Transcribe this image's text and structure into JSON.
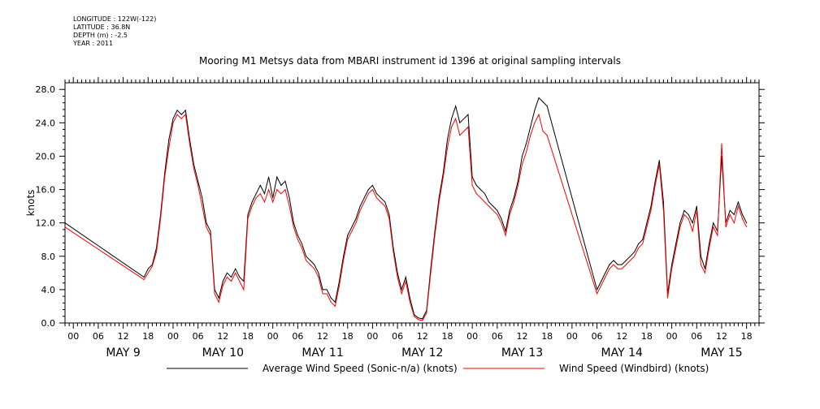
{
  "header": {
    "longitude": "LONGITUDE : 122W(-122)",
    "latitude": "LATITUDE : 36.8N",
    "depth": "DEPTH (m) : -2.5",
    "year": "YEAR : 2011",
    "title": "Mooring M1 Metsys data from MBARI instrument id 1396 at original sampling intervals"
  },
  "chart_data": {
    "type": "line",
    "title": "Mooring M1 Metsys data from MBARI instrument id 1396 at original sampling intervals",
    "xlabel": "",
    "ylabel": "knots",
    "ylim": [
      0,
      28.8
    ],
    "xlim_hours": [
      -2,
      165
    ],
    "x_unit": "hours since May 9 00:00, 2011",
    "y_ticks": [
      "0.0",
      "4.0",
      "8.0",
      "12.0",
      "16.0",
      "20.0",
      "24.0",
      "28.0"
    ],
    "y_tick_values": [
      0,
      4,
      8,
      12,
      16,
      20,
      24,
      28
    ],
    "x_hour_ticks": [
      0,
      6,
      12,
      18,
      24,
      30,
      36,
      42,
      48,
      54,
      60,
      66,
      72,
      78,
      84,
      90,
      96,
      102,
      108,
      114,
      120,
      126,
      132,
      138,
      144,
      150,
      156,
      162
    ],
    "x_hour_labels": [
      "00",
      "06",
      "12",
      "18",
      "00",
      "06",
      "12",
      "18",
      "00",
      "06",
      "12",
      "18",
      "00",
      "06",
      "12",
      "18",
      "00",
      "06",
      "12",
      "18",
      "00",
      "06",
      "12",
      "18",
      "00",
      "06",
      "12",
      "18"
    ],
    "day_labels": [
      {
        "label": "MAY  9",
        "hour": 12
      },
      {
        "label": "MAY 10",
        "hour": 36
      },
      {
        "label": "MAY 11",
        "hour": 60
      },
      {
        "label": "MAY 12",
        "hour": 84
      },
      {
        "label": "MAY 13",
        "hour": 108
      },
      {
        "label": "MAY 14",
        "hour": 132
      },
      {
        "label": "MAY 15",
        "hour": 156
      }
    ],
    "grid": false,
    "legend_position": "bottom",
    "series": [
      {
        "name": "Average Wind Speed (Sonic-n/a) (knots)",
        "color": "#000000",
        "points": [
          [
            -2,
            12.0
          ],
          [
            17,
            5.5
          ],
          [
            18,
            6.5
          ],
          [
            19,
            7.0
          ],
          [
            20,
            9.0
          ],
          [
            21,
            13.0
          ],
          [
            22,
            18.0
          ],
          [
            23,
            22.0
          ],
          [
            24,
            24.5
          ],
          [
            25,
            25.5
          ],
          [
            26,
            25.0
          ],
          [
            27,
            25.5
          ],
          [
            28,
            22.0
          ],
          [
            29,
            19.0
          ],
          [
            30,
            17.0
          ],
          [
            31,
            15.0
          ],
          [
            32,
            12.0
          ],
          [
            33,
            11.0
          ],
          [
            34,
            4.0
          ],
          [
            35,
            3.0
          ],
          [
            36,
            5.0
          ],
          [
            37,
            6.0
          ],
          [
            38,
            5.5
          ],
          [
            39,
            6.5
          ],
          [
            40,
            5.5
          ],
          [
            41,
            5.0
          ],
          [
            42,
            13.0
          ],
          [
            43,
            14.5
          ],
          [
            44,
            15.5
          ],
          [
            45,
            16.5
          ],
          [
            46,
            15.5
          ],
          [
            47,
            17.5
          ],
          [
            48,
            15.0
          ],
          [
            49,
            17.5
          ],
          [
            50,
            16.5
          ],
          [
            51,
            17.0
          ],
          [
            52,
            15.0
          ],
          [
            53,
            12.0
          ],
          [
            54,
            10.5
          ],
          [
            55,
            9.5
          ],
          [
            56,
            8.0
          ],
          [
            57,
            7.5
          ],
          [
            58,
            7.0
          ],
          [
            59,
            6.0
          ],
          [
            60,
            4.0
          ],
          [
            61,
            4.0
          ],
          [
            62,
            3.0
          ],
          [
            63,
            2.5
          ],
          [
            64,
            5.0
          ],
          [
            65,
            8.0
          ],
          [
            66,
            10.5
          ],
          [
            67,
            11.5
          ],
          [
            68,
            12.5
          ],
          [
            69,
            14.0
          ],
          [
            70,
            15.0
          ],
          [
            71,
            16.0
          ],
          [
            72,
            16.5
          ],
          [
            73,
            15.5
          ],
          [
            74,
            15.0
          ],
          [
            75,
            14.5
          ],
          [
            76,
            13.0
          ],
          [
            77,
            9.0
          ],
          [
            78,
            6.0
          ],
          [
            79,
            4.0
          ],
          [
            80,
            5.5
          ],
          [
            81,
            3.0
          ],
          [
            82,
            1.0
          ],
          [
            83,
            0.6
          ],
          [
            84,
            0.5
          ],
          [
            85,
            1.5
          ],
          [
            86,
            6.5
          ],
          [
            87,
            11.0
          ],
          [
            88,
            15.0
          ],
          [
            89,
            18.0
          ],
          [
            90,
            22.0
          ],
          [
            91,
            24.5
          ],
          [
            92,
            26.0
          ],
          [
            93,
            24.0
          ],
          [
            94,
            24.5
          ],
          [
            95,
            25.0
          ],
          [
            96,
            17.5
          ],
          [
            97,
            16.5
          ],
          [
            98,
            16.0
          ],
          [
            99,
            15.5
          ],
          [
            100,
            14.5
          ],
          [
            101,
            14.0
          ],
          [
            102,
            13.5
          ],
          [
            103,
            12.5
          ],
          [
            104,
            11.0
          ],
          [
            105,
            13.5
          ],
          [
            106,
            15.0
          ],
          [
            107,
            17.0
          ],
          [
            108,
            20.0
          ],
          [
            109,
            21.5
          ],
          [
            110,
            23.5
          ],
          [
            111,
            25.5
          ],
          [
            112,
            27.0
          ],
          [
            113,
            26.5
          ],
          [
            114,
            26.0
          ],
          [
            126,
            4.0
          ],
          [
            127,
            5.0
          ],
          [
            128,
            6.0
          ],
          [
            129,
            7.0
          ],
          [
            130,
            7.5
          ],
          [
            131,
            7.0
          ],
          [
            132,
            7.0
          ],
          [
            133,
            7.5
          ],
          [
            134,
            8.0
          ],
          [
            135,
            8.5
          ],
          [
            136,
            9.5
          ],
          [
            137,
            10.0
          ],
          [
            138,
            12.0
          ],
          [
            139,
            14.0
          ],
          [
            140,
            17.0
          ],
          [
            141,
            19.5
          ],
          [
            142,
            14.5
          ],
          [
            143,
            3.5
          ],
          [
            144,
            7.0
          ],
          [
            145,
            9.5
          ],
          [
            146,
            12.0
          ],
          [
            147,
            13.5
          ],
          [
            148,
            13.0
          ],
          [
            149,
            12.0
          ],
          [
            150,
            14.0
          ],
          [
            151,
            8.0
          ],
          [
            152,
            6.5
          ],
          [
            153,
            9.5
          ],
          [
            154,
            12.0
          ],
          [
            155,
            11.0
          ],
          [
            156,
            20.0
          ],
          [
            157,
            12.0
          ],
          [
            158,
            13.5
          ],
          [
            159,
            13.0
          ],
          [
            160,
            14.5
          ],
          [
            161,
            13.0
          ],
          [
            162,
            12.0
          ]
        ]
      },
      {
        "name": "Wind Speed (Windbird) (knots)",
        "color": "#ff0000",
        "points": [
          [
            -2,
            11.5
          ],
          [
            17,
            5.2
          ],
          [
            18,
            6.0
          ],
          [
            19,
            6.8
          ],
          [
            20,
            8.5
          ],
          [
            21,
            12.5
          ],
          [
            22,
            17.5
          ],
          [
            23,
            21.0
          ],
          [
            24,
            24.0
          ],
          [
            25,
            25.0
          ],
          [
            26,
            24.5
          ],
          [
            27,
            25.0
          ],
          [
            28,
            21.5
          ],
          [
            29,
            18.5
          ],
          [
            30,
            16.5
          ],
          [
            31,
            14.0
          ],
          [
            32,
            11.5
          ],
          [
            33,
            10.5
          ],
          [
            34,
            3.5
          ],
          [
            35,
            2.5
          ],
          [
            36,
            4.5
          ],
          [
            37,
            5.5
          ],
          [
            38,
            5.0
          ],
          [
            39,
            6.0
          ],
          [
            40,
            5.0
          ],
          [
            41,
            4.0
          ],
          [
            42,
            12.5
          ],
          [
            43,
            14.0
          ],
          [
            44,
            15.0
          ],
          [
            45,
            15.5
          ],
          [
            46,
            14.5
          ],
          [
            47,
            16.0
          ],
          [
            48,
            14.5
          ],
          [
            49,
            16.0
          ],
          [
            50,
            15.5
          ],
          [
            51,
            16.0
          ],
          [
            52,
            14.0
          ],
          [
            53,
            11.5
          ],
          [
            54,
            10.0
          ],
          [
            55,
            9.0
          ],
          [
            56,
            7.5
          ],
          [
            57,
            7.0
          ],
          [
            58,
            6.5
          ],
          [
            59,
            5.5
          ],
          [
            60,
            3.5
          ],
          [
            61,
            3.5
          ],
          [
            62,
            2.5
          ],
          [
            63,
            2.0
          ],
          [
            64,
            4.5
          ],
          [
            65,
            7.5
          ],
          [
            66,
            10.0
          ],
          [
            67,
            11.0
          ],
          [
            68,
            12.0
          ],
          [
            69,
            13.5
          ],
          [
            70,
            14.5
          ],
          [
            71,
            15.5
          ],
          [
            72,
            16.0
          ],
          [
            73,
            15.0
          ],
          [
            74,
            14.5
          ],
          [
            75,
            14.0
          ],
          [
            76,
            12.5
          ],
          [
            77,
            8.5
          ],
          [
            78,
            5.5
          ],
          [
            79,
            3.5
          ],
          [
            80,
            5.0
          ],
          [
            81,
            2.5
          ],
          [
            82,
            0.8
          ],
          [
            83,
            0.4
          ],
          [
            84,
            0.3
          ],
          [
            85,
            1.2
          ],
          [
            86,
            6.0
          ],
          [
            87,
            10.5
          ],
          [
            88,
            14.5
          ],
          [
            89,
            17.5
          ],
          [
            90,
            21.0
          ],
          [
            91,
            23.5
          ],
          [
            92,
            24.5
          ],
          [
            93,
            22.5
          ],
          [
            94,
            23.0
          ],
          [
            95,
            23.5
          ],
          [
            96,
            16.5
          ],
          [
            97,
            15.5
          ],
          [
            98,
            15.0
          ],
          [
            99,
            14.5
          ],
          [
            100,
            14.0
          ],
          [
            101,
            13.5
          ],
          [
            102,
            13.0
          ],
          [
            103,
            12.0
          ],
          [
            104,
            10.5
          ],
          [
            105,
            13.0
          ],
          [
            106,
            14.5
          ],
          [
            107,
            16.5
          ],
          [
            108,
            19.0
          ],
          [
            109,
            20.5
          ],
          [
            110,
            22.5
          ],
          [
            111,
            24.0
          ],
          [
            112,
            25.0
          ],
          [
            113,
            23.0
          ],
          [
            114,
            22.5
          ],
          [
            126,
            3.5
          ],
          [
            127,
            4.5
          ],
          [
            128,
            5.5
          ],
          [
            129,
            6.5
          ],
          [
            130,
            7.0
          ],
          [
            131,
            6.5
          ],
          [
            132,
            6.5
          ],
          [
            133,
            7.0
          ],
          [
            134,
            7.5
          ],
          [
            135,
            8.0
          ],
          [
            136,
            9.0
          ],
          [
            137,
            9.5
          ],
          [
            138,
            11.5
          ],
          [
            139,
            13.5
          ],
          [
            140,
            16.5
          ],
          [
            141,
            19.0
          ],
          [
            142,
            13.5
          ],
          [
            143,
            3.0
          ],
          [
            144,
            6.5
          ],
          [
            145,
            9.0
          ],
          [
            146,
            11.5
          ],
          [
            147,
            13.0
          ],
          [
            148,
            12.5
          ],
          [
            149,
            11.0
          ],
          [
            150,
            13.5
          ],
          [
            151,
            7.0
          ],
          [
            152,
            6.0
          ],
          [
            153,
            9.0
          ],
          [
            154,
            11.5
          ],
          [
            155,
            10.5
          ],
          [
            156,
            21.5
          ],
          [
            157,
            11.5
          ],
          [
            158,
            13.0
          ],
          [
            159,
            12.0
          ],
          [
            160,
            14.0
          ],
          [
            161,
            12.5
          ],
          [
            162,
            11.5
          ]
        ]
      }
    ]
  }
}
